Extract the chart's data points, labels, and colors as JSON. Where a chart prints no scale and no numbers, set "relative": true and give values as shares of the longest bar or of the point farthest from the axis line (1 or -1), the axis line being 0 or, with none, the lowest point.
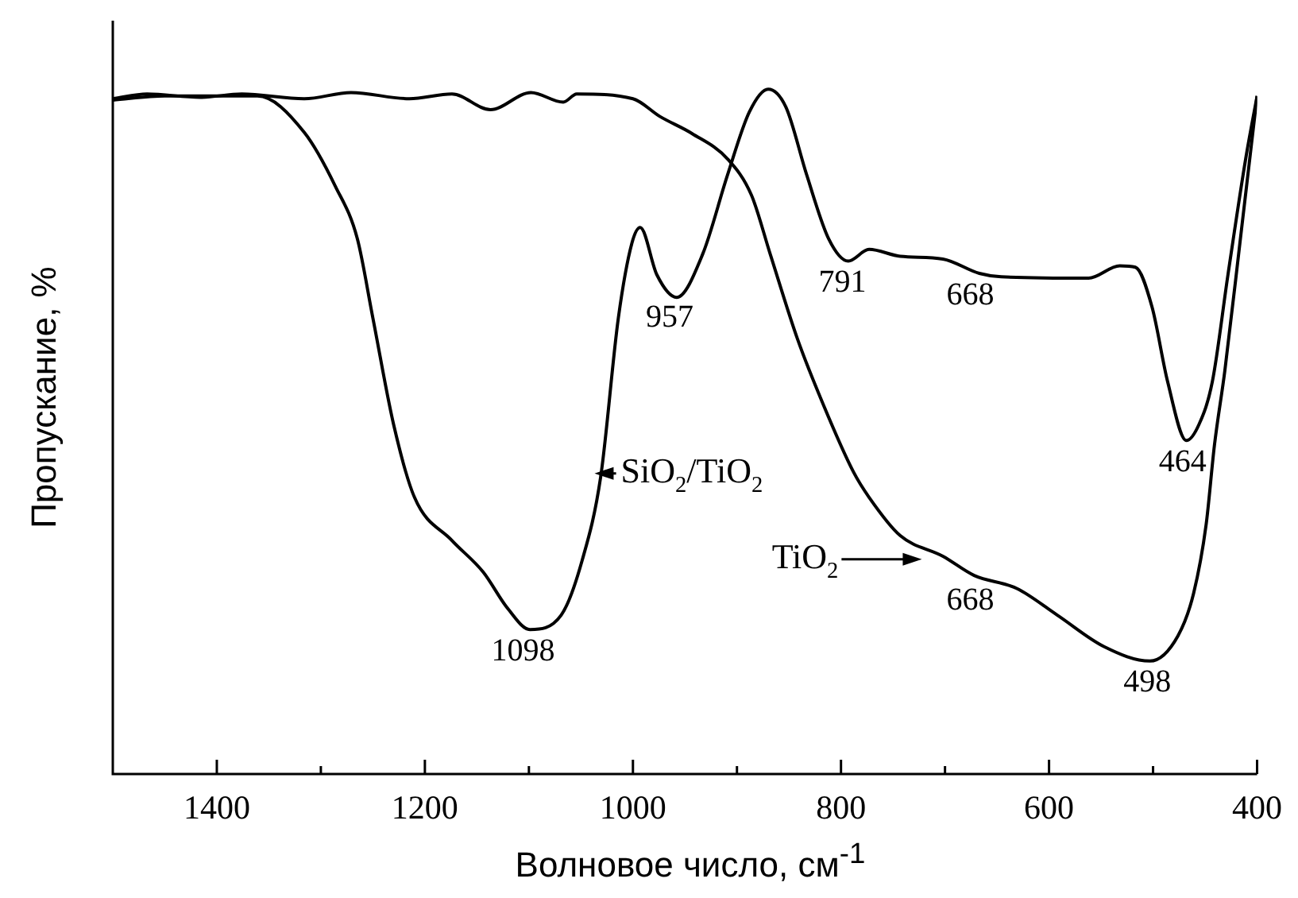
{
  "chart_data": {
    "type": "line",
    "relative": true,
    "xlabel": "Волновое число, см$^{-1}$",
    "ylabel": "Пропускание, %",
    "xlim": [
      1500,
      400
    ],
    "xticks": [
      1400,
      {
        "value": 1300,
        "label": null
      },
      1200,
      {
        "value": 1100,
        "label": null
      },
      1000,
      {
        "value": 900,
        "label": null
      },
      800,
      {
        "value": 700,
        "label": null
      },
      600,
      {
        "value": 500,
        "label": null
      },
      400
    ],
    "marker": "none",
    "line_style": "solid",
    "grid": false,
    "legend": "center",
    "series": [
      {
        "name": "SiO$_{2}$/TiO$_{2}$",
        "color": "#000000",
        "x": [
          1500,
          1450,
          1400,
          1361,
          1316,
          1286,
          1265,
          1250,
          1230,
          1210,
          1174,
          1144,
          1120,
          1099,
          1069,
          1049,
          1031,
          1014,
          1001,
          993,
          977,
          958,
          933,
          909,
          888,
          870,
          853,
          833,
          812,
          793,
          773,
          743,
          702,
          667,
          646,
          562,
          532,
          517,
          501,
          486,
          468,
          456,
          443,
          428,
          411,
          400
        ],
        "values": [
          0.984,
          0.99,
          0.99,
          0.99,
          0.937,
          0.858,
          0.782,
          0.666,
          0.51,
          0.404,
          0.341,
          0.295,
          0.241,
          0.211,
          0.232,
          0.311,
          0.434,
          0.666,
          0.775,
          0.798,
          0.729,
          0.696,
          0.759,
          0.875,
          0.967,
          1,
          0.974,
          0.875,
          0.782,
          0.749,
          0.766,
          0.756,
          0.752,
          0.731,
          0.726,
          0.724,
          0.742,
          0.74,
          0.682,
          0.573,
          0.487,
          0.51,
          0.573,
          0.729,
          0.898,
          0.99
        ]
      },
      {
        "name": "TiO$_{2}$",
        "color": "#000000",
        "x": [
          1500,
          1467,
          1416,
          1376,
          1316,
          1271,
          1215,
          1174,
          1137,
          1098,
          1067,
          1054,
          1000,
          974,
          943,
          909,
          886,
          868,
          842,
          818,
          788,
          773,
          743,
          702,
          672,
          631,
          592,
          547,
          503,
          476,
          461,
          449,
          441,
          431,
          416,
          400
        ],
        "values": [
          0.986,
          0.993,
          0.988,
          0.993,
          0.986,
          0.995,
          0.986,
          0.993,
          0.97,
          0.995,
          0.981,
          0.993,
          0.986,
          0.96,
          0.935,
          0.898,
          0.845,
          0.759,
          0.636,
          0.543,
          0.441,
          0.404,
          0.348,
          0.318,
          0.29,
          0.271,
          0.232,
          0.186,
          0.165,
          0.202,
          0.264,
          0.364,
          0.48,
          0.589,
          0.782,
          0.99
        ]
      }
    ],
    "annotations": [
      {
        "text": "1098",
        "x": 1098,
        "y": 0.211
      },
      {
        "text": "957",
        "x": 957,
        "y": 0.698
      },
      {
        "text": "791",
        "x": 791,
        "y": 0.749
      },
      {
        "text": "668",
        "x": 668,
        "y": 0.731
      },
      {
        "text": "464",
        "x": 464,
        "y": 0.487
      },
      {
        "text": "668",
        "x": 668,
        "y": 0.285
      },
      {
        "text": "498",
        "x": 498,
        "y": 0.165
      }
    ]
  }
}
